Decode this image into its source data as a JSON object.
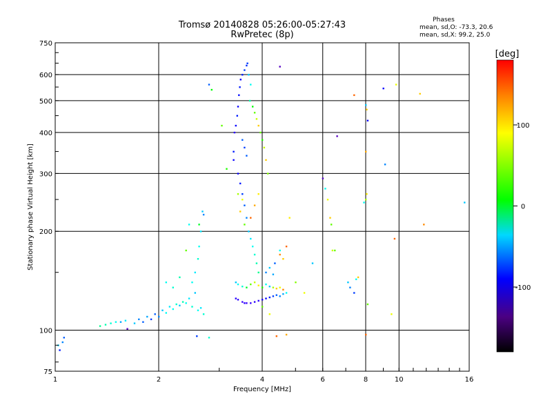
{
  "chart_data": {
    "type": "scatter",
    "title": "Tromsø 20140828 05:26:00-05:27:43",
    "subtitle": "RwPretec (8p)",
    "xlabel": "Frequency [MHz]",
    "ylabel": "Stationary phase Virtual Height [km]",
    "x_scale": "log",
    "y_scale": "log",
    "xlim": [
      1,
      16
    ],
    "ylim": [
      75,
      750
    ],
    "x_ticks": [
      1,
      2,
      4,
      6,
      8,
      10,
      16
    ],
    "y_ticks": [
      75,
      100,
      200,
      300,
      400,
      500,
      600,
      750
    ],
    "grid": true,
    "stats": {
      "title": "Phases",
      "line_o": "mean, sd,O: -73.3, 20.6",
      "line_x": "mean, sd,X:  99.2, 25.0"
    },
    "colorbar": {
      "label": "[deg]",
      "range": [
        -180,
        180
      ],
      "ticks": [
        100,
        0,
        -100
      ]
    },
    "series": [
      {
        "name": "echoes",
        "description": "phase-coloured sounder echoes [frequency MHz, height km, phase deg]",
        "points": [
          [
            1.02,
            90,
            -60
          ],
          [
            1.05,
            92,
            -80
          ],
          [
            1.06,
            95,
            -90
          ],
          [
            1.03,
            87,
            -110
          ],
          [
            1.35,
            103,
            -10
          ],
          [
            1.4,
            104,
            -20
          ],
          [
            1.45,
            105,
            -30
          ],
          [
            1.5,
            106,
            -40
          ],
          [
            1.55,
            106,
            -70
          ],
          [
            1.6,
            107,
            -50
          ],
          [
            1.62,
            101,
            -150
          ],
          [
            1.7,
            105,
            -60
          ],
          [
            1.75,
            108,
            -80
          ],
          [
            1.8,
            106,
            -90
          ],
          [
            1.85,
            110,
            -70
          ],
          [
            1.9,
            108,
            -100
          ],
          [
            1.95,
            112,
            -90
          ],
          [
            2.0,
            110,
            -80
          ],
          [
            2.05,
            115,
            -60
          ],
          [
            2.1,
            113,
            -40
          ],
          [
            2.15,
            118,
            -50
          ],
          [
            2.2,
            116,
            -40
          ],
          [
            2.25,
            120,
            -30
          ],
          [
            2.3,
            119,
            -60
          ],
          [
            2.35,
            122,
            -20
          ],
          [
            2.4,
            121,
            -40
          ],
          [
            2.45,
            125,
            -50
          ],
          [
            2.5,
            118,
            -30
          ],
          [
            2.55,
            130,
            -60
          ],
          [
            2.6,
            115,
            -40
          ],
          [
            2.65,
            117,
            -50
          ],
          [
            2.7,
            112,
            -30
          ],
          [
            2.1,
            140,
            -40
          ],
          [
            2.2,
            135,
            -30
          ],
          [
            2.3,
            145,
            -20
          ],
          [
            2.5,
            140,
            -40
          ],
          [
            2.55,
            150,
            -50
          ],
          [
            2.6,
            165,
            -30
          ],
          [
            2.62,
            180,
            -40
          ],
          [
            2.65,
            200,
            -50
          ],
          [
            2.68,
            230,
            -60
          ],
          [
            2.7,
            225,
            -80
          ],
          [
            2.62,
            210,
            20
          ],
          [
            2.45,
            210,
            -40
          ],
          [
            2.4,
            175,
            60
          ],
          [
            2.58,
            96,
            -100
          ],
          [
            2.8,
            95,
            -30
          ],
          [
            2.8,
            560,
            -90
          ],
          [
            2.85,
            540,
            30
          ],
          [
            3.05,
            420,
            60
          ],
          [
            3.15,
            310,
            40
          ],
          [
            3.3,
            330,
            -120
          ],
          [
            3.3,
            350,
            -110
          ],
          [
            3.32,
            400,
            -130
          ],
          [
            3.35,
            420,
            -120
          ],
          [
            3.38,
            450,
            -110
          ],
          [
            3.4,
            480,
            -120
          ],
          [
            3.42,
            520,
            -115
          ],
          [
            3.44,
            550,
            -110
          ],
          [
            3.46,
            580,
            -120
          ],
          [
            3.5,
            600,
            -110
          ],
          [
            3.55,
            620,
            -100
          ],
          [
            3.6,
            640,
            -105
          ],
          [
            3.62,
            650,
            -100
          ],
          [
            3.65,
            600,
            -60
          ],
          [
            3.7,
            560,
            -40
          ],
          [
            3.68,
            500,
            -20
          ],
          [
            3.75,
            480,
            30
          ],
          [
            3.8,
            460,
            60
          ],
          [
            3.85,
            440,
            90
          ],
          [
            3.9,
            420,
            120
          ],
          [
            3.95,
            400,
            60
          ],
          [
            4.0,
            380,
            40
          ],
          [
            4.05,
            360,
            90
          ],
          [
            4.1,
            330,
            120
          ],
          [
            4.15,
            300,
            70
          ],
          [
            3.5,
            380,
            -90
          ],
          [
            3.55,
            360,
            -100
          ],
          [
            3.6,
            340,
            -90
          ],
          [
            3.4,
            300,
            -120
          ],
          [
            3.45,
            280,
            -110
          ],
          [
            3.5,
            260,
            -100
          ],
          [
            3.55,
            240,
            -90
          ],
          [
            3.6,
            220,
            -80
          ],
          [
            3.65,
            200,
            -60
          ],
          [
            3.7,
            190,
            -50
          ],
          [
            3.75,
            180,
            -40
          ],
          [
            3.8,
            170,
            -30
          ],
          [
            3.85,
            160,
            -20
          ],
          [
            3.9,
            150,
            -10
          ],
          [
            3.4,
            260,
            80
          ],
          [
            3.5,
            250,
            100
          ],
          [
            3.45,
            230,
            120
          ],
          [
            3.55,
            210,
            60
          ],
          [
            3.7,
            220,
            150
          ],
          [
            3.8,
            240,
            130
          ],
          [
            3.9,
            260,
            110
          ],
          [
            3.35,
            140,
            -60
          ],
          [
            3.4,
            138,
            -40
          ],
          [
            3.5,
            136,
            -30
          ],
          [
            3.6,
            135,
            20
          ],
          [
            3.7,
            138,
            60
          ],
          [
            3.8,
            140,
            90
          ],
          [
            3.9,
            137,
            110
          ],
          [
            4.0,
            135,
            40
          ],
          [
            4.1,
            138,
            -40
          ],
          [
            4.2,
            136,
            -60
          ],
          [
            4.3,
            135,
            80
          ],
          [
            4.4,
            134,
            120
          ],
          [
            4.5,
            135,
            100
          ],
          [
            4.6,
            133,
            140
          ],
          [
            3.35,
            125,
            -130
          ],
          [
            3.4,
            124,
            -130
          ],
          [
            3.5,
            122,
            -135
          ],
          [
            3.55,
            121,
            -130
          ],
          [
            3.6,
            121,
            -135
          ],
          [
            3.7,
            121,
            -135
          ],
          [
            3.8,
            122,
            -130
          ],
          [
            3.9,
            123,
            -130
          ],
          [
            4.0,
            124,
            -125
          ],
          [
            4.1,
            125,
            -120
          ],
          [
            4.2,
            126,
            -110
          ],
          [
            4.3,
            127,
            -100
          ],
          [
            4.4,
            128,
            -90
          ],
          [
            4.5,
            127,
            -80
          ],
          [
            4.6,
            129,
            -70
          ],
          [
            4.7,
            130,
            -40
          ],
          [
            4.1,
            150,
            -80
          ],
          [
            4.2,
            155,
            -60
          ],
          [
            4.3,
            148,
            -70
          ],
          [
            4.35,
            160,
            -90
          ],
          [
            4.5,
            170,
            140
          ],
          [
            4.6,
            165,
            120
          ],
          [
            4.7,
            180,
            150
          ],
          [
            4.8,
            220,
            110
          ],
          [
            4.5,
            635,
            -150
          ],
          [
            4.5,
            175,
            -40
          ],
          [
            4.0,
            118,
            60
          ],
          [
            4.2,
            112,
            100
          ],
          [
            4.4,
            96,
            150
          ],
          [
            4.7,
            97,
            130
          ],
          [
            5.0,
            140,
            70
          ],
          [
            5.3,
            130,
            100
          ],
          [
            5.6,
            160,
            -60
          ],
          [
            6.0,
            290,
            -150
          ],
          [
            6.1,
            270,
            -40
          ],
          [
            6.2,
            250,
            100
          ],
          [
            6.3,
            220,
            120
          ],
          [
            6.35,
            210,
            60
          ],
          [
            6.4,
            175,
            90
          ],
          [
            6.5,
            175,
            60
          ],
          [
            6.6,
            390,
            -150
          ],
          [
            7.1,
            140,
            -60
          ],
          [
            7.2,
            135,
            -80
          ],
          [
            7.4,
            130,
            -100
          ],
          [
            7.5,
            143,
            -40
          ],
          [
            7.6,
            145,
            120
          ],
          [
            7.4,
            520,
            150
          ],
          [
            8.0,
            485,
            -60
          ],
          [
            8.05,
            470,
            120
          ],
          [
            8.1,
            435,
            -120
          ],
          [
            8.0,
            350,
            130
          ],
          [
            8.05,
            260,
            110
          ],
          [
            8.0,
            250,
            80
          ],
          [
            7.9,
            245,
            -40
          ],
          [
            8.1,
            120,
            60
          ],
          [
            8.0,
            97,
            150
          ],
          [
            9.0,
            545,
            -120
          ],
          [
            9.1,
            320,
            -80
          ],
          [
            9.5,
            112,
            100
          ],
          [
            9.7,
            190,
            150
          ],
          [
            9.8,
            560,
            100
          ],
          [
            11.5,
            525,
            120
          ],
          [
            11.8,
            210,
            140
          ],
          [
            15.5,
            245,
            -60
          ]
        ]
      }
    ]
  }
}
